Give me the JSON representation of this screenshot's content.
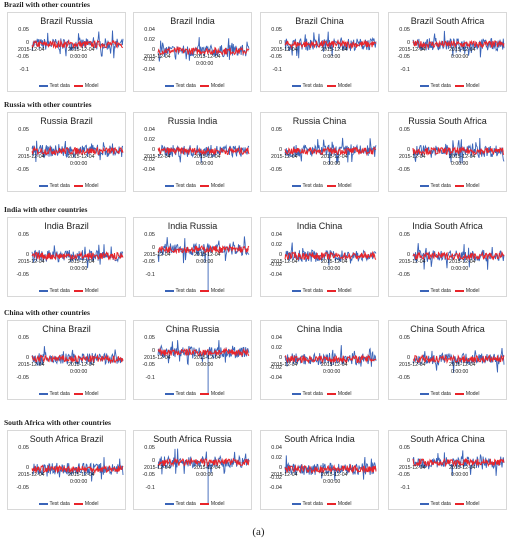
{
  "caption": "(a)",
  "colors": {
    "test": "#3a64b8",
    "model": "#e8242a"
  },
  "legend": {
    "test": "Test data",
    "model": "Model"
  },
  "x_dates": [
    "2015-12-04",
    "0:00:00"
  ],
  "sections": [
    {
      "title": "Brazil with other countries",
      "panels": [
        {
          "title": "Brazil Russia",
          "yticks": [
            "0.05",
            "0",
            "-0.05",
            "-0.1"
          ]
        },
        {
          "title": "Brazil India",
          "yticks": [
            "0.04",
            "0.02",
            "0",
            "-0.02",
            "-0.04"
          ]
        },
        {
          "title": "Brazil China",
          "yticks": [
            "0.05",
            "0",
            "-0.05",
            "-0.1"
          ]
        },
        {
          "title": "Brazil South Africa",
          "yticks": [
            "0.05",
            "0",
            "-0.05",
            "-0.1"
          ]
        }
      ]
    },
    {
      "title": "Russia with other countries",
      "panels": [
        {
          "title": "Russia Brazil",
          "yticks": [
            "0.05",
            "0",
            "-0.05"
          ]
        },
        {
          "title": "Russia India",
          "yticks": [
            "0.04",
            "0.02",
            "0",
            "-0.02",
            "-0.04"
          ]
        },
        {
          "title": "Russia China",
          "yticks": [
            "0.05",
            "0",
            "-0.05"
          ]
        },
        {
          "title": "Russia South Africa",
          "yticks": [
            "0.05",
            "0",
            "-0.05"
          ]
        }
      ]
    },
    {
      "title": "India with other countries",
      "panels": [
        {
          "title": "India Brazil",
          "yticks": [
            "0.05",
            "0",
            "-0.05"
          ]
        },
        {
          "title": "India Russia",
          "yticks": [
            "0.05",
            "0",
            "-0.05",
            "-0.1"
          ]
        },
        {
          "title": "India China",
          "yticks": [
            "0.04",
            "0.02",
            "0",
            "-0.02",
            "-0.04"
          ]
        },
        {
          "title": "India South Africa",
          "yticks": [
            "0.05",
            "0",
            "-0.05"
          ]
        }
      ]
    },
    {
      "title": "China with other countries",
      "panels": [
        {
          "title": "China Brazil",
          "yticks": [
            "0.05",
            "0",
            "-0.05"
          ]
        },
        {
          "title": "China Russia",
          "yticks": [
            "0.05",
            "0",
            "-0.05",
            "-0.1"
          ]
        },
        {
          "title": "China India",
          "yticks": [
            "0.04",
            "0.02",
            "0",
            "-0.02",
            "-0.04"
          ]
        },
        {
          "title": "China South Africa",
          "yticks": [
            "0.05",
            "0",
            "-0.05"
          ]
        }
      ]
    },
    {
      "title": "South Africa with other countries",
      "panels": [
        {
          "title": "South Africa Brazil",
          "yticks": [
            "0.05",
            "0",
            "-0.05"
          ]
        },
        {
          "title": "South Africa Russia",
          "yticks": [
            "0.05",
            "0",
            "-0.05",
            "-0.1"
          ]
        },
        {
          "title": "South Africa India",
          "yticks": [
            "0.04",
            "0.02",
            "0",
            "-0.02",
            "-0.04"
          ]
        },
        {
          "title": "South Africa China",
          "yticks": [
            "0.05",
            "0",
            "-0.05",
            "-0.1"
          ]
        }
      ]
    }
  ]
}
